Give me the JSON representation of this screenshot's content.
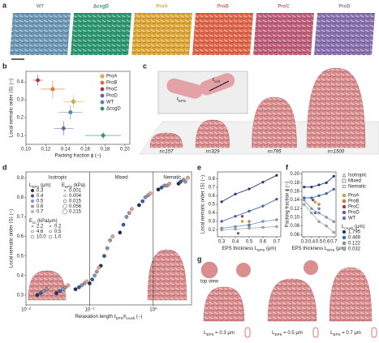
{
  "panel_letters": [
    "a",
    "b",
    "c",
    "d",
    "e",
    "f",
    "g"
  ],
  "panel_a": {
    "labels": [
      {
        "text": "WT",
        "color": "#6e9ab8"
      },
      {
        "text": "ΔcsgD",
        "color": "#2e9a73"
      },
      {
        "text": "ProA",
        "color": "#e0a838"
      },
      {
        "text": "ProB",
        "color": "#e2674a"
      },
      {
        "text": "ProC",
        "color": "#c0607a"
      },
      {
        "text": "ProD",
        "color": "#8a72b0"
      }
    ]
  },
  "panel_c": {
    "inset_labels": [
      [
        "ℓ",
        "EPS"
      ],
      [
        "ℓ",
        "cell"
      ]
    ],
    "counts": [
      "n=157",
      "n=329",
      "n=795",
      "n=1500"
    ]
  },
  "panel_g": {
    "top_view": "top view",
    "labels": [
      [
        "L",
        "EPS",
        " = 0.3 μm"
      ],
      [
        "L",
        "EPS",
        " = 0.5 μm"
      ],
      [
        "L",
        "EPS",
        " = 0.7 μm"
      ]
    ]
  },
  "chart_data": [
    {
      "type": "scatter",
      "xlabel": "Packing fraction ϕ (−)",
      "ylabel": "Local nematic order ⟨S⟩ (−)",
      "xlim": [
        0.1,
        0.205
      ],
      "ylim": [
        0.05,
        0.46
      ],
      "xticks": [
        {
          "value": 0.1,
          "label": "0.10"
        },
        0.12,
        0.14,
        0.16,
        0.18,
        {
          "value": 0.2,
          "label": "0.20"
        }
      ],
      "yticks": [
        0.1,
        0.2,
        0.3,
        0.4
      ],
      "legend": "upper right",
      "series": [
        {
          "name": "ProA",
          "color": "#e8b830",
          "x": [
            0.148
          ],
          "values": [
            0.29
          ],
          "x_err": [
            0.01
          ],
          "y_err": [
            0.04
          ]
        },
        {
          "name": "ProB",
          "color": "#e8773a",
          "x": [
            0.127
          ],
          "values": [
            0.36
          ],
          "x_err": [
            0.012
          ],
          "y_err": [
            0.05
          ]
        },
        {
          "name": "ProC",
          "color": "#b8323e",
          "x": [
            0.112
          ],
          "values": [
            0.41
          ],
          "x_err": [
            0.005
          ],
          "y_err": [
            0.03
          ]
        },
        {
          "name": "ProD",
          "color": "#7a5aa8",
          "x": [
            0.138
          ],
          "values": [
            0.14
          ],
          "x_err": [
            0.01
          ],
          "y_err": [
            0.04
          ]
        },
        {
          "name": "WT",
          "color": "#5b8ab0",
          "x": [
            0.145
          ],
          "values": [
            0.23
          ],
          "x_err": [
            0.012
          ],
          "y_err": [
            0.04
          ]
        },
        {
          "name": "ΔcsgD",
          "color": "#2b9a6a",
          "x": [
            0.178
          ],
          "values": [
            0.1
          ],
          "x_err": [
            0.018
          ],
          "y_err": [
            0.02
          ]
        }
      ]
    },
    {
      "type": "scatter",
      "xlog": true,
      "xlabel": [
        "Relaxation length ℓ",
        "EPS",
        "/ℓ",
        "crush",
        " (−)"
      ],
      "ylabel": "Local nematic order ⟨S⟩ (−)",
      "xlim": [
        0.01,
        4
      ],
      "ylim": [
        0.25,
        0.93
      ],
      "xticks": [
        {
          "value": 0.01,
          "label": "10⁻²"
        },
        {
          "value": 0.1,
          "label": "10⁻¹"
        },
        {
          "value": 1,
          "label": "10⁰"
        }
      ],
      "yticks": [
        0.3,
        0.4,
        0.5,
        0.6,
        0.7,
        0.8,
        0.9
      ],
      "boundaries": [
        0.1,
        1
      ],
      "region_labels": [
        "Isotropic",
        "Mixed",
        "Nematic"
      ],
      "legend": "upper left",
      "legend_title": [
        "L",
        "EPS",
        " (μm)"
      ],
      "extra_legends": [
        {
          "title": [
            "E",
            "EPS",
            " (kPa)"
          ],
          "labels": [
            "0.001",
            "0.004",
            "0.015",
            "0.056",
            "0.215"
          ]
        },
        {
          "title": [
            "E",
            "cc",
            " (kPa/μm)"
          ],
          "labels": [
            "2.2",
            "4.6",
            "10.0",
            "0.2",
            "0.5",
            "1.0"
          ]
        }
      ],
      "series": [
        {
          "name": "0.3",
          "color": "#1f2f5c",
          "x": [
            0.015,
            0.03,
            0.06,
            0.1,
            0.15,
            0.3,
            0.6,
            1.2,
            2.5
          ],
          "values": [
            0.3,
            0.31,
            0.33,
            0.36,
            0.45,
            0.62,
            0.76,
            0.84,
            0.87
          ]
        },
        {
          "name": "0.4",
          "color": "#3a5a9a",
          "x": [
            0.017,
            0.034,
            0.068,
            0.11,
            0.17,
            0.34,
            0.68,
            1.35,
            2.7
          ],
          "values": [
            0.31,
            0.32,
            0.34,
            0.38,
            0.5,
            0.66,
            0.78,
            0.85,
            0.88
          ]
        },
        {
          "name": "0.5",
          "color": "#7896c4",
          "x": [
            0.019,
            0.038,
            0.075,
            0.12,
            0.19,
            0.38,
            0.75,
            1.5,
            3.0
          ],
          "values": [
            0.32,
            0.33,
            0.35,
            0.4,
            0.54,
            0.7,
            0.8,
            0.86,
            0.89
          ]
        },
        {
          "name": "0.6",
          "color": "#b98c8c",
          "x": [
            0.021,
            0.042,
            0.083,
            0.13,
            0.21,
            0.42,
            0.83,
            1.65,
            3.2
          ],
          "values": [
            0.33,
            0.34,
            0.36,
            0.42,
            0.58,
            0.72,
            0.81,
            0.86,
            0.88
          ]
        },
        {
          "name": "0.7",
          "color": "#d9a99a",
          "x": [
            0.023,
            0.046,
            0.09,
            0.14,
            0.23,
            0.46,
            0.9,
            1.8,
            3.5
          ],
          "values": [
            0.34,
            0.35,
            0.37,
            0.44,
            0.6,
            0.74,
            0.82,
            0.87,
            0.9
          ]
        }
      ]
    },
    {
      "type": "line",
      "xlabel": [
        "EPS thickness L",
        "EPS",
        " (μm)"
      ],
      "ylabel": "Local nematic order ⟨S⟩ (−)",
      "xlim": [
        0.27,
        0.73
      ],
      "ylim": [
        0.12,
        0.88
      ],
      "xticks": [
        0.3,
        0.4,
        0.5,
        0.6,
        0.7
      ],
      "yticks": [
        0.2,
        0.3,
        0.4,
        0.5,
        0.6,
        0.7,
        0.8
      ],
      "series": [
        {
          "color": "#1f3a7a",
          "x": [
            0.3,
            0.4,
            0.5,
            0.6,
            0.7
          ],
          "values": [
            0.53,
            0.62,
            0.68,
            0.76,
            0.84
          ]
        },
        {
          "color": "#3c6ab0",
          "x": [
            0.3,
            0.4,
            0.5,
            0.6,
            0.7
          ],
          "values": [
            0.3,
            0.36,
            0.42,
            0.48,
            0.56
          ]
        },
        {
          "color": "#7aa0cc",
          "x": [
            0.3,
            0.4,
            0.5,
            0.6,
            0.7
          ],
          "values": [
            0.22,
            0.24,
            0.26,
            0.3,
            0.32
          ]
        },
        {
          "color": "#b0b0b0",
          "x": [
            0.3,
            0.4,
            0.5,
            0.6,
            0.7
          ],
          "values": [
            0.2,
            0.21,
            0.22,
            0.23,
            0.24
          ]
        },
        {
          "mode": "markers",
          "color": "#e8b830",
          "x": [
            0.45
          ],
          "values": [
            0.3
          ]
        },
        {
          "mode": "markers",
          "color": "#e8773a",
          "x": [
            0.5
          ],
          "values": [
            0.3
          ]
        },
        {
          "mode": "markers",
          "color": "#b8323e",
          "x": [
            0.45
          ],
          "values": [
            0.36
          ]
        },
        {
          "mode": "markers",
          "color": "#7a5aa8",
          "x": [
            0.42
          ],
          "values": [
            0.16
          ]
        },
        {
          "mode": "markers",
          "color": "#5b8ab0",
          "x": [
            0.5
          ],
          "values": [
            0.25
          ]
        }
      ]
    },
    {
      "type": "line",
      "xlabel": [
        "EPS thickness L",
        "EPS",
        " (μm)"
      ],
      "ylabel": "Packing fraction ϕ (−)",
      "xlim": [
        0.27,
        0.73
      ],
      "ylim": [
        0.055,
        0.205
      ],
      "xticks": [
        0.3,
        0.4,
        0.5,
        0.6,
        0.7
      ],
      "yticks": [
        0.06,
        0.08,
        {
          "value": 0.1,
          "label": "0.10"
        },
        0.12,
        0.14,
        0.16,
        0.18,
        {
          "value": 0.2,
          "label": "0.20"
        }
      ],
      "phase_legend": [
        "Isotropic",
        "Mixed",
        "Nematic"
      ],
      "legend_title": [
        "L",
        "crush",
        " (μm)"
      ],
      "series": [
        {
          "name": "1.795",
          "color": "#1f3a7a",
          "x": [
            0.3,
            0.4,
            0.5,
            0.6,
            0.7
          ],
          "values": [
            0.17,
            0.17,
            0.175,
            0.18,
            0.195
          ]
        },
        {
          "name": "0.469",
          "color": "#3c6ab0",
          "x": [
            0.3,
            0.4,
            0.5,
            0.6,
            0.7
          ],
          "values": [
            0.145,
            0.145,
            0.15,
            0.155,
            0.165
          ]
        },
        {
          "name": "0.122",
          "color": "#7aa0cc",
          "x": [
            0.3,
            0.4,
            0.5,
            0.6,
            0.7
          ],
          "values": [
            0.14,
            0.12,
            0.11,
            0.1,
            0.09
          ]
        },
        {
          "name": "0.032",
          "color": "#b0b0b0",
          "x": [
            0.3,
            0.4,
            0.5,
            0.6,
            0.7
          ],
          "values": [
            0.13,
            0.11,
            0.09,
            0.08,
            0.065
          ]
        },
        {
          "mode": "markers",
          "name": "ProA",
          "color": "#e8b830",
          "x": [
            0.45
          ],
          "values": [
            0.135
          ]
        },
        {
          "mode": "markers",
          "name": "ProB",
          "color": "#e8773a",
          "x": [
            0.5
          ],
          "values": [
            0.13
          ]
        },
        {
          "mode": "markers",
          "name": "ProC",
          "color": "#b8323e",
          "x": [
            0.42
          ],
          "values": [
            0.14
          ]
        },
        {
          "mode": "markers",
          "name": "ProD",
          "color": "#7a5aa8",
          "x": [
            0.45
          ],
          "values": [
            0.11
          ]
        },
        {
          "mode": "markers",
          "name": "WT",
          "color": "#5b8ab0",
          "x": [
            0.5
          ],
          "values": [
            0.12
          ]
        }
      ]
    }
  ]
}
